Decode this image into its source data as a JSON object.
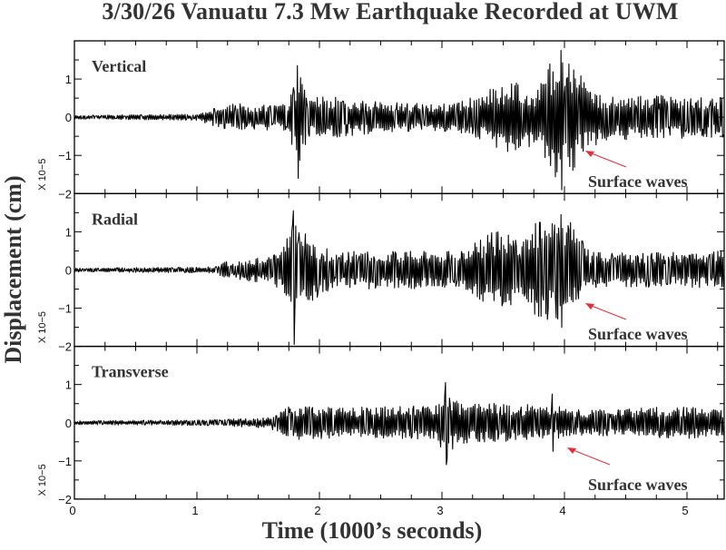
{
  "chart_data": {
    "type": "line",
    "title": "3/30/26 Vanuatu 7.3 Mw Earthquake Recorded at UWM",
    "xlabel": "Time (1000’s seconds)",
    "ylabel": "Displacement (cm)",
    "xlim": [
      0,
      5.3
    ],
    "x_ticks": [
      "0",
      "1",
      "2",
      "3",
      "4",
      "5"
    ],
    "grid": false,
    "legend": null,
    "panels": [
      {
        "name": "Vertical",
        "ylim": [
          -2,
          2
        ],
        "y_ticks": [
          "1",
          "0",
          "-1",
          "-2"
        ],
        "scale": "X 10−5",
        "annotation": "Surface waves",
        "envelope": [
          [
            0,
            0.05
          ],
          [
            1.0,
            0.08
          ],
          [
            1.15,
            0.25
          ],
          [
            1.3,
            0.35
          ],
          [
            1.75,
            0.35
          ],
          [
            1.82,
            1.4
          ],
          [
            1.9,
            0.6
          ],
          [
            2.5,
            0.4
          ],
          [
            3.0,
            0.35
          ],
          [
            3.3,
            0.55
          ],
          [
            3.5,
            0.95
          ],
          [
            3.65,
            0.9
          ],
          [
            3.75,
            0.7
          ],
          [
            3.85,
            1.4
          ],
          [
            4.0,
            1.75
          ],
          [
            4.15,
            1.1
          ],
          [
            4.3,
            0.6
          ],
          [
            5.3,
            0.55
          ]
        ],
        "peaks": [
          [
            1.82,
            1.35,
            -1.6
          ],
          [
            3.97,
            1.75,
            -1.9
          ]
        ]
      },
      {
        "name": "Radial",
        "ylim": [
          -2,
          2
        ],
        "y_ticks": [
          "1",
          "0",
          "-1",
          "-2"
        ],
        "scale": "X 10−5",
        "annotation": "Surface waves",
        "envelope": [
          [
            0,
            0.05
          ],
          [
            1.15,
            0.08
          ],
          [
            1.25,
            0.25
          ],
          [
            1.6,
            0.35
          ],
          [
            1.7,
            0.6
          ],
          [
            1.8,
            1.5
          ],
          [
            1.9,
            0.9
          ],
          [
            2.1,
            0.5
          ],
          [
            3.0,
            0.5
          ],
          [
            3.2,
            0.55
          ],
          [
            3.4,
            1.0
          ],
          [
            3.55,
            1.0
          ],
          [
            3.65,
            0.7
          ],
          [
            3.75,
            1.3
          ],
          [
            3.95,
            1.45
          ],
          [
            4.1,
            1.2
          ],
          [
            4.2,
            0.5
          ],
          [
            4.5,
            0.45
          ],
          [
            5.3,
            0.5
          ]
        ],
        "peaks": [
          [
            1.79,
            1.55,
            -1.95
          ],
          [
            3.97,
            1.45,
            -1.5
          ]
        ]
      },
      {
        "name": "Transverse",
        "ylim": [
          -2,
          2
        ],
        "y_ticks": [
          "1",
          "0",
          "-1",
          "-2"
        ],
        "scale": "X 10−5",
        "annotation": "Surface waves",
        "envelope": [
          [
            0,
            0.05
          ],
          [
            1.2,
            0.08
          ],
          [
            1.6,
            0.15
          ],
          [
            1.75,
            0.45
          ],
          [
            2.2,
            0.4
          ],
          [
            2.95,
            0.45
          ],
          [
            3.05,
            1.0
          ],
          [
            3.15,
            0.55
          ],
          [
            3.9,
            0.45
          ],
          [
            4.1,
            0.35
          ],
          [
            4.5,
            0.35
          ],
          [
            4.9,
            0.45
          ],
          [
            5.3,
            0.35
          ]
        ],
        "peaks": [
          [
            3.03,
            1.05,
            -1.1
          ],
          [
            3.9,
            0.75,
            -0.75
          ]
        ]
      }
    ]
  },
  "labels": {
    "title": "3/30/26 Vanuatu 7.3 Mw Earthquake Recorded at UWM",
    "xlabel": "Time (1000’s seconds)",
    "ylabel": "Displacement (cm)",
    "panel_1": "Vertical",
    "panel_2": "Radial",
    "panel_3": "Transverse",
    "annotation": "Surface waves",
    "scale": "X 10−5"
  },
  "colors": {
    "trace": "#000000",
    "arrow": "#e0303a",
    "text": "#333333"
  }
}
